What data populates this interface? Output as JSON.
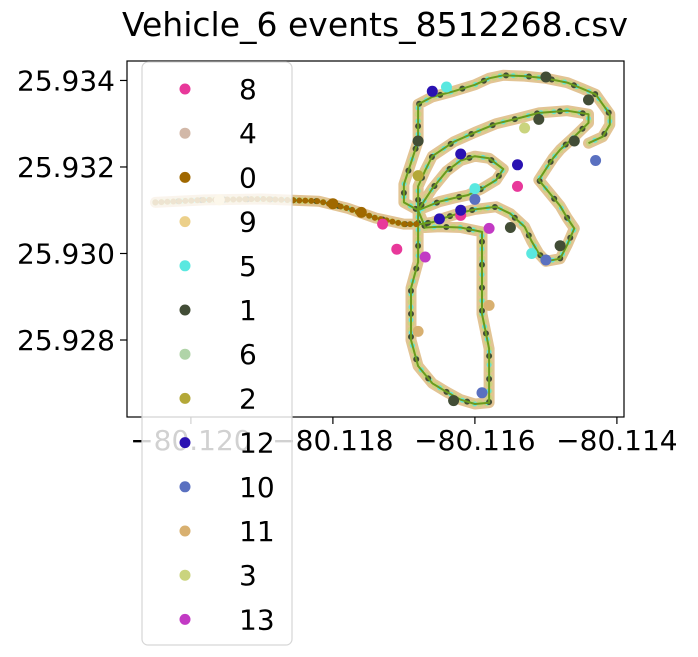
{
  "chart_data": {
    "type": "scatter",
    "title": "Vehicle_6 events_8512268.csv",
    "xlabel": "",
    "ylabel": "",
    "xlim": [
      -80.1209,
      -80.1139
    ],
    "ylim": [
      25.92622,
      25.93445
    ],
    "x_ticks": [
      -80.12,
      -80.118,
      -80.116,
      -80.114
    ],
    "x_tick_labels": [
      "−80.120",
      "−80.118",
      "−80.116",
      "−80.114"
    ],
    "y_ticks": [
      25.928,
      25.93,
      25.932,
      25.934
    ],
    "y_tick_labels": [
      "25.928",
      "25.930",
      "25.932",
      "25.934"
    ],
    "grid": false,
    "legend_position": "left, extending below plot",
    "route_line_color": "#6a9b1e",
    "series": [
      {
        "name": "8",
        "color": "#e8389a"
      },
      {
        "name": "4",
        "color": "#d2b8a8"
      },
      {
        "name": "0",
        "color": "#a06800"
      },
      {
        "name": "9",
        "color": "#ecd08a"
      },
      {
        "name": "5",
        "color": "#5ae8e0"
      },
      {
        "name": "1",
        "color": "#424d36"
      },
      {
        "name": "6",
        "color": "#b0d4a8"
      },
      {
        "name": "2",
        "color": "#b4a838"
      },
      {
        "name": "12",
        "color": "#2a12b2"
      },
      {
        "name": "10",
        "color": "#5a70c0"
      },
      {
        "name": "11",
        "color": "#d8b070"
      },
      {
        "name": "3",
        "color": "#cad47e"
      },
      {
        "name": "13",
        "color": "#c23ac4"
      }
    ],
    "route_waypoints": [
      [
        -80.1205,
        25.93118
      ],
      [
        -80.1198,
        25.93124
      ],
      [
        -80.119,
        25.93126
      ],
      [
        -80.1182,
        25.93121
      ],
      [
        -80.1178,
        25.93105
      ],
      [
        -80.1174,
        25.93082
      ],
      [
        -80.117,
        25.93068
      ],
      [
        -80.1168,
        25.93068
      ],
      [
        -80.1166,
        25.93072
      ],
      [
        -80.1164,
        25.93084
      ],
      [
        -80.1162,
        25.93094
      ],
      [
        -80.116,
        25.93102
      ],
      [
        -80.1157,
        25.93108
      ],
      [
        -80.1155,
        25.93092
      ],
      [
        -80.1153,
        25.93062
      ],
      [
        -80.1152,
        25.93028
      ],
      [
        -80.1151,
        25.93
      ],
      [
        -80.115,
        25.92982
      ],
      [
        -80.1148,
        25.92988
      ],
      [
        -80.1147,
        25.9302
      ],
      [
        -80.1146,
        25.93058
      ],
      [
        -80.1147,
        25.93082
      ],
      [
        -80.1148,
        25.9311
      ],
      [
        -80.1149,
        25.9313
      ],
      [
        -80.115,
        25.9315
      ],
      [
        -80.1151,
        25.9317
      ],
      [
        -80.115,
        25.93195
      ],
      [
        -80.1149,
        25.9322
      ],
      [
        -80.1148,
        25.9324
      ],
      [
        -80.1146,
        25.9327
      ],
      [
        -80.1144,
        25.93302
      ],
      [
        -80.1144,
        25.93322
      ],
      [
        -80.1147,
        25.9333
      ],
      [
        -80.1151,
        25.93325
      ],
      [
        -80.1154,
        25.93312
      ],
      [
        -80.1157,
        25.933
      ],
      [
        -80.116,
        25.9328
      ],
      [
        -80.1163,
        25.93258
      ],
      [
        -80.1166,
        25.93225
      ],
      [
        -80.1167,
        25.93192
      ],
      [
        -80.1168,
        25.93155
      ],
      [
        -80.1168,
        25.9312
      ],
      [
        -80.1168,
        25.931
      ],
      [
        -80.1168,
        25.93082
      ],
      [
        -80.1168,
        25.9304
      ],
      [
        -80.1168,
        25.9298
      ],
      [
        -80.1169,
        25.9292
      ],
      [
        -80.1169,
        25.9286
      ],
      [
        -80.1169,
        25.928
      ],
      [
        -80.1168,
        25.9274
      ],
      [
        -80.1166,
        25.927
      ],
      [
        -80.1164,
        25.9268
      ],
      [
        -80.1162,
        25.92662
      ],
      [
        -80.116,
        25.92652
      ],
      [
        -80.1158,
        25.92655
      ],
      [
        -80.1158,
        25.927
      ],
      [
        -80.1158,
        25.9278
      ],
      [
        -80.1159,
        25.9286
      ],
      [
        -80.1159,
        25.9294
      ],
      [
        -80.1159,
        25.9301
      ],
      [
        -80.1159,
        25.9305
      ],
      [
        -80.1162,
        25.9306
      ],
      [
        -80.1165,
        25.93062
      ],
      [
        -80.1167,
        25.9306
      ],
      [
        -80.1168,
        25.931
      ],
      [
        -80.1166,
        25.9315
      ],
      [
        -80.1164,
        25.9319
      ],
      [
        -80.1162,
        25.93215
      ],
      [
        -80.116,
        25.93225
      ],
      [
        -80.1158,
        25.9322
      ],
      [
        -80.1156,
        25.93195
      ],
      [
        -80.1157,
        25.9317
      ],
      [
        -80.1159,
        25.9315
      ],
      [
        -80.1161,
        25.93135
      ],
      [
        -80.1163,
        25.93128
      ],
      [
        -80.1165,
        25.9312
      ],
      [
        -80.1168,
        25.931
      ],
      [
        -80.117,
        25.93118
      ],
      [
        -80.117,
        25.9316
      ],
      [
        -80.1169,
        25.9321
      ],
      [
        -80.1168,
        25.9326
      ],
      [
        -80.1168,
        25.9331
      ],
      [
        -80.1168,
        25.93345
      ],
      [
        -80.1166,
        25.93362
      ],
      [
        -80.1163,
        25.93375
      ],
      [
        -80.116,
        25.9339
      ],
      [
        -80.1158,
        25.93405
      ],
      [
        -80.1156,
        25.93412
      ],
      [
        -80.1153,
        25.9341
      ],
      [
        -80.115,
        25.93405
      ],
      [
        -80.1147,
        25.93395
      ],
      [
        -80.1145,
        25.93382
      ],
      [
        -80.1143,
        25.93368
      ],
      [
        -80.1142,
        25.93345
      ],
      [
        -80.1141,
        25.93322
      ],
      [
        -80.1141,
        25.93298
      ],
      [
        -80.1142,
        25.9327
      ],
      [
        -80.1144,
        25.93255
      ]
    ],
    "markers": [
      {
        "series": "8",
        "x": -80.1173,
        "y": 25.93068
      },
      {
        "series": "8",
        "x": -80.1171,
        "y": 25.9301
      },
      {
        "series": "8",
        "x": -80.1154,
        "y": 25.93155
      },
      {
        "series": "8",
        "x": -80.1162,
        "y": 25.93088
      },
      {
        "series": "13",
        "x": -80.1167,
        "y": 25.92992
      },
      {
        "series": "13",
        "x": -80.1158,
        "y": 25.93058
      },
      {
        "series": "12",
        "x": -80.1165,
        "y": 25.9308
      },
      {
        "series": "12",
        "x": -80.1162,
        "y": 25.931
      },
      {
        "series": "12",
        "x": -80.1162,
        "y": 25.9323
      },
      {
        "series": "12",
        "x": -80.1154,
        "y": 25.93205
      },
      {
        "series": "12",
        "x": -80.1166,
        "y": 25.93375
      },
      {
        "series": "10",
        "x": -80.116,
        "y": 25.93125
      },
      {
        "series": "10",
        "x": -80.1143,
        "y": 25.93215
      },
      {
        "series": "10",
        "x": -80.1159,
        "y": 25.92678
      },
      {
        "series": "10",
        "x": -80.115,
        "y": 25.92985
      },
      {
        "series": "1",
        "x": -80.115,
        "y": 25.93408
      },
      {
        "series": "1",
        "x": -80.1144,
        "y": 25.93355
      },
      {
        "series": "1",
        "x": -80.1146,
        "y": 25.9326
      },
      {
        "series": "1",
        "x": -80.1168,
        "y": 25.9326
      },
      {
        "series": "1",
        "x": -80.1155,
        "y": 25.9306
      },
      {
        "series": "1",
        "x": -80.1148,
        "y": 25.93018
      },
      {
        "series": "1",
        "x": -80.1163,
        "y": 25.9266
      },
      {
        "series": "1",
        "x": -80.1151,
        "y": 25.9331
      },
      {
        "series": "5",
        "x": -80.116,
        "y": 25.9315
      },
      {
        "series": "5",
        "x": -80.1152,
        "y": 25.93
      },
      {
        "series": "5",
        "x": -80.1164,
        "y": 25.93385
      },
      {
        "series": "0",
        "x": -80.1176,
        "y": 25.93095
      },
      {
        "series": "0",
        "x": -80.118,
        "y": 25.93115
      },
      {
        "series": "11",
        "x": -80.1168,
        "y": 25.9282
      },
      {
        "series": "11",
        "x": -80.1158,
        "y": 25.9288
      },
      {
        "series": "2",
        "x": -80.1168,
        "y": 25.9318
      },
      {
        "series": "3",
        "x": -80.1153,
        "y": 25.9329
      },
      {
        "series": "9",
        "x": -80.1196,
        "y": 25.93124
      }
    ]
  }
}
